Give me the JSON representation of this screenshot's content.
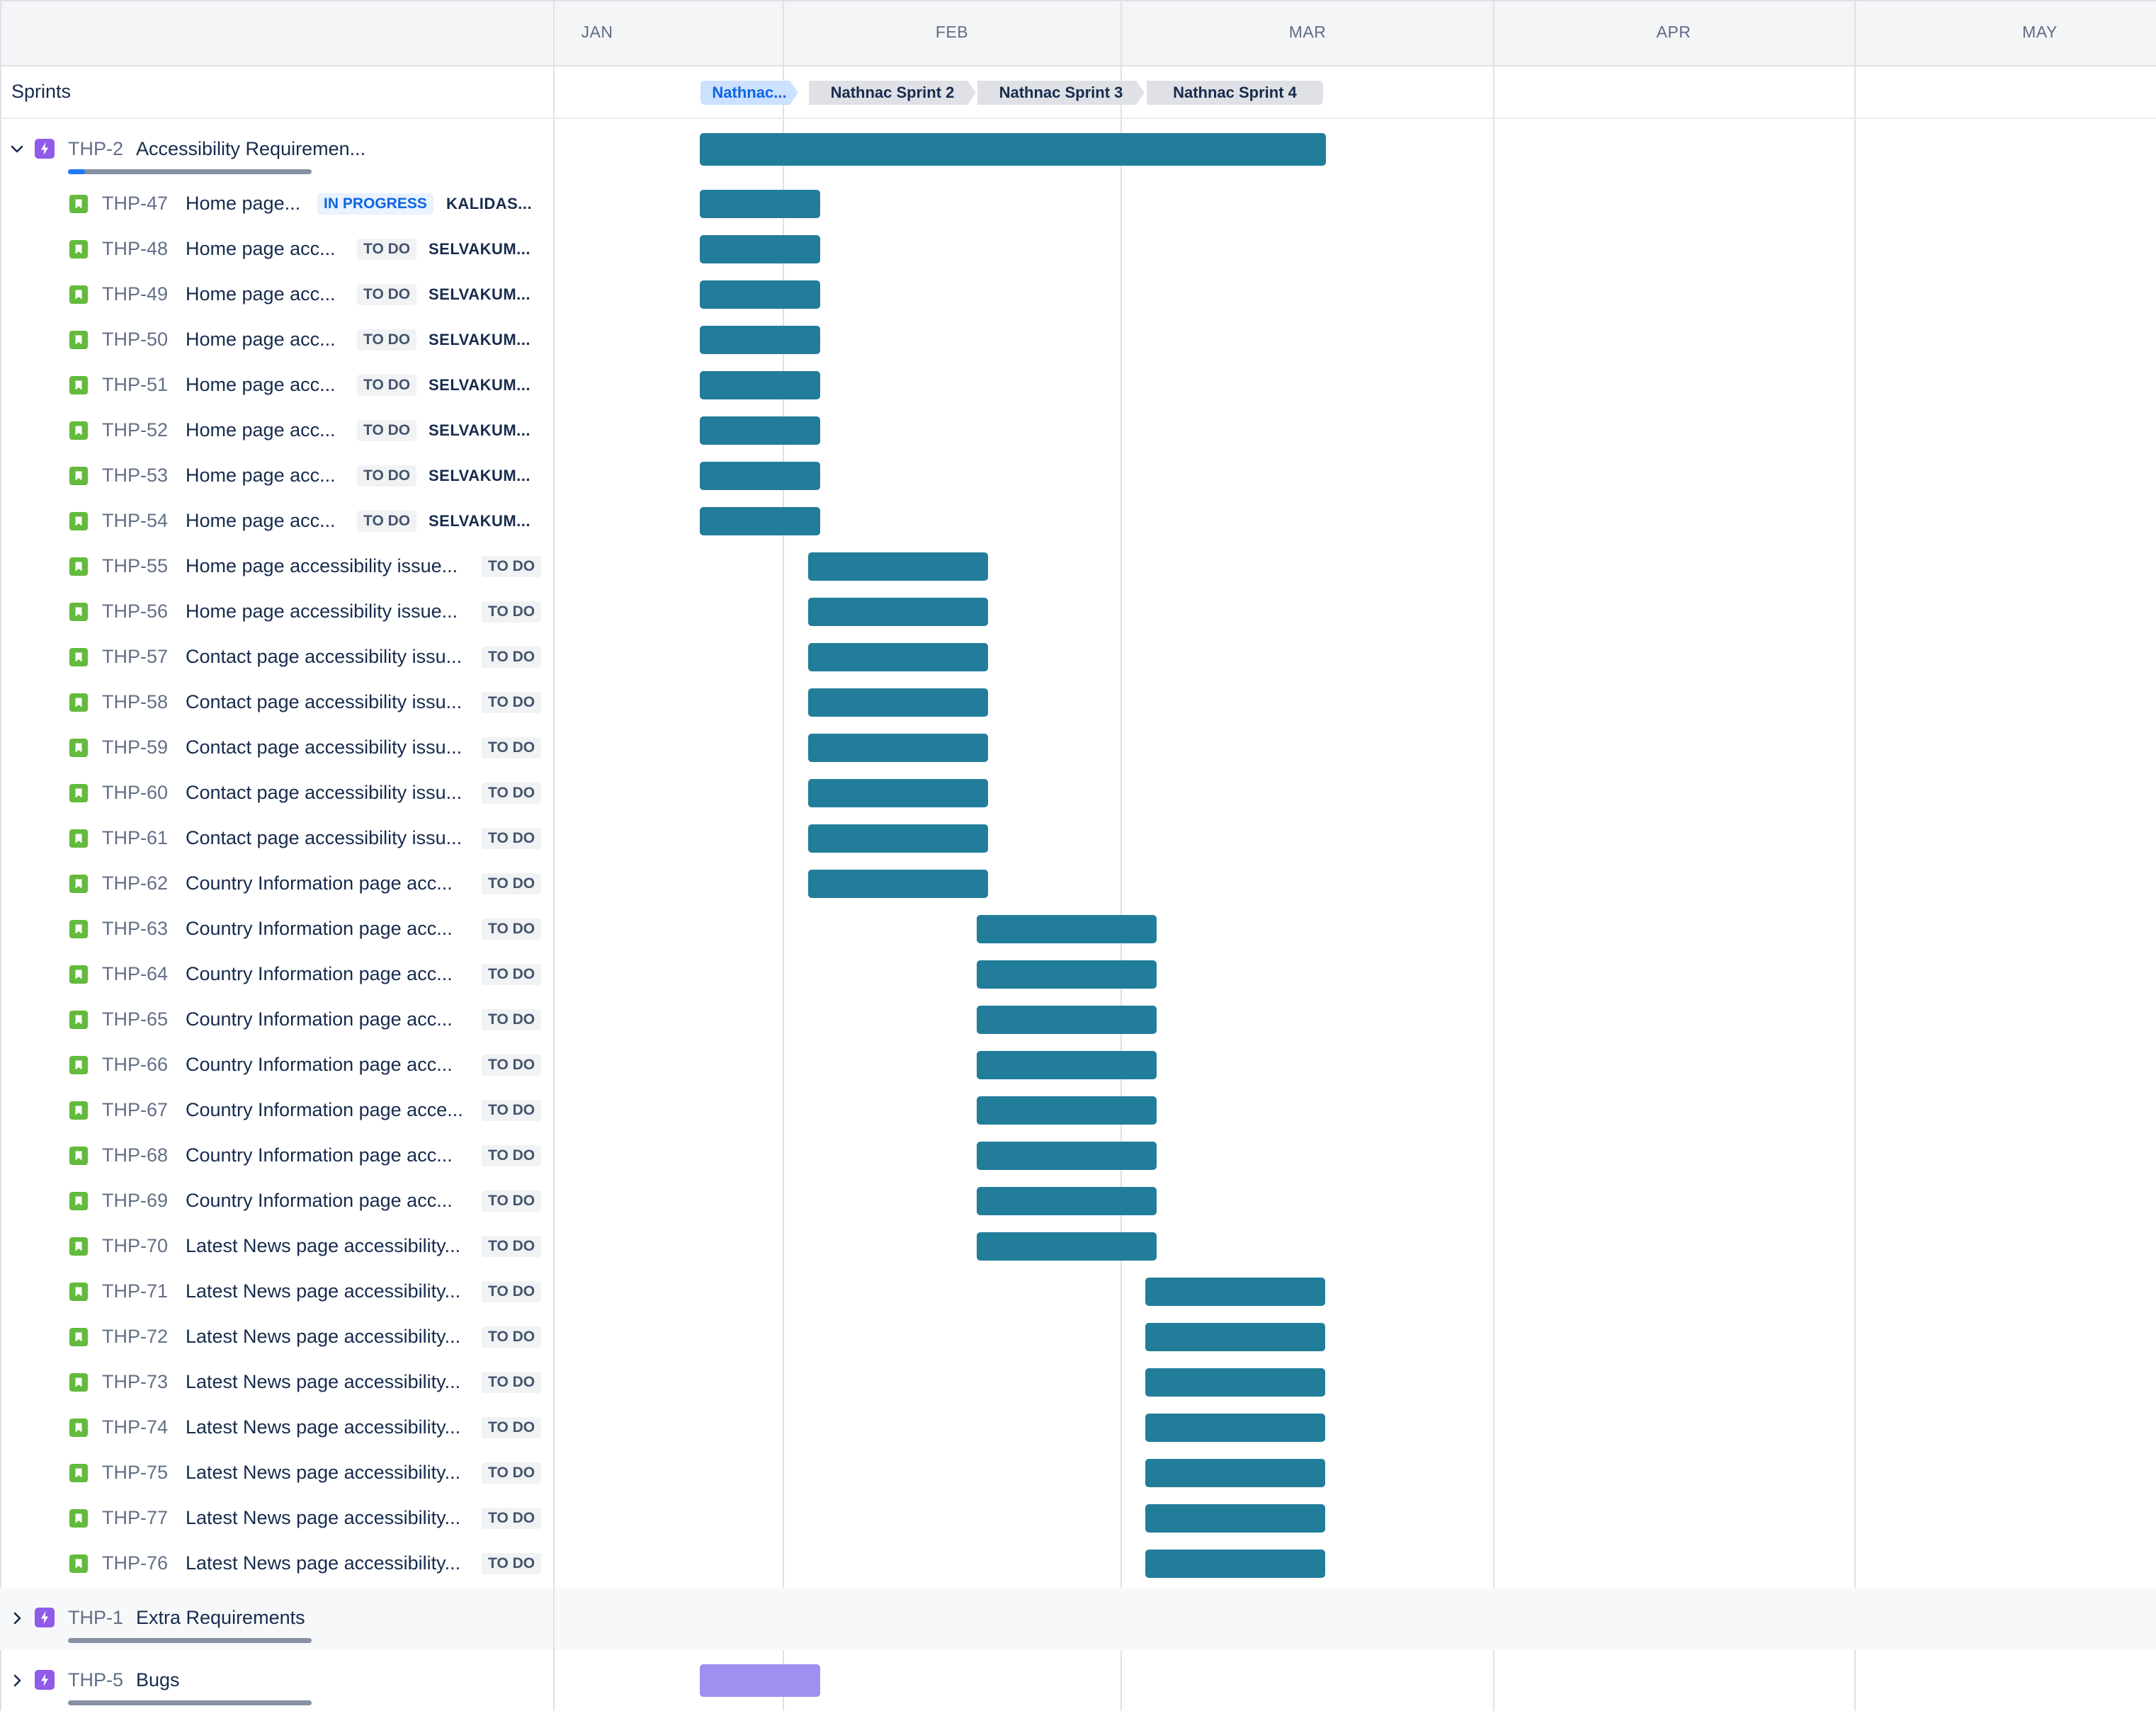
{
  "timeline": {
    "months": [
      "JAN",
      "FEB",
      "MAR",
      "APR",
      "MAY"
    ]
  },
  "sprints": {
    "label": "Sprints",
    "items": [
      {
        "label": "Nathnac..."
      },
      {
        "label": "Nathnac Sprint 2"
      },
      {
        "label": "Nathnac Sprint 3"
      },
      {
        "label": "Nathnac Sprint 4"
      }
    ]
  },
  "epics": [
    {
      "key": "THP-2",
      "summary": "Accessibility Requiremen...",
      "expanded": true,
      "progress_done": 0.07,
      "color": "#227d9b",
      "children": [
        {
          "key": "THP-47",
          "summary": "Home page...",
          "status": "IN PROGRESS",
          "assignee": "KALIDAS..."
        },
        {
          "key": "THP-48",
          "summary": "Home page acc...",
          "status": "TO DO",
          "assignee": "SELVAKUM..."
        },
        {
          "key": "THP-49",
          "summary": "Home page acc...",
          "status": "TO DO",
          "assignee": "SELVAKUM..."
        },
        {
          "key": "THP-50",
          "summary": "Home page acc...",
          "status": "TO DO",
          "assignee": "SELVAKUM..."
        },
        {
          "key": "THP-51",
          "summary": "Home page acc...",
          "status": "TO DO",
          "assignee": "SELVAKUM..."
        },
        {
          "key": "THP-52",
          "summary": "Home page acc...",
          "status": "TO DO",
          "assignee": "SELVAKUM..."
        },
        {
          "key": "THP-53",
          "summary": "Home page acc...",
          "status": "TO DO",
          "assignee": "SELVAKUM..."
        },
        {
          "key": "THP-54",
          "summary": "Home page acc...",
          "status": "TO DO",
          "assignee": "SELVAKUM..."
        },
        {
          "key": "THP-55",
          "summary": "Home page accessibility issue...",
          "status": "TO DO",
          "assignee": ""
        },
        {
          "key": "THP-56",
          "summary": "Home page accessibility issue...",
          "status": "TO DO",
          "assignee": ""
        },
        {
          "key": "THP-57",
          "summary": "Contact page accessibility issu...",
          "status": "TO DO",
          "assignee": ""
        },
        {
          "key": "THP-58",
          "summary": "Contact page accessibility issu...",
          "status": "TO DO",
          "assignee": ""
        },
        {
          "key": "THP-59",
          "summary": "Contact page accessibility issu...",
          "status": "TO DO",
          "assignee": ""
        },
        {
          "key": "THP-60",
          "summary": "Contact page accessibility issu...",
          "status": "TO DO",
          "assignee": ""
        },
        {
          "key": "THP-61",
          "summary": "Contact page accessibility issu...",
          "status": "TO DO",
          "assignee": ""
        },
        {
          "key": "THP-62",
          "summary": "Country Information page acc...",
          "status": "TO DO",
          "assignee": ""
        },
        {
          "key": "THP-63",
          "summary": "Country Information page acc...",
          "status": "TO DO",
          "assignee": ""
        },
        {
          "key": "THP-64",
          "summary": "Country Information page acc...",
          "status": "TO DO",
          "assignee": ""
        },
        {
          "key": "THP-65",
          "summary": "Country Information page acc...",
          "status": "TO DO",
          "assignee": ""
        },
        {
          "key": "THP-66",
          "summary": "Country Information page acc...",
          "status": "TO DO",
          "assignee": ""
        },
        {
          "key": "THP-67",
          "summary": "Country Information page acce...",
          "status": "TO DO",
          "assignee": ""
        },
        {
          "key": "THP-68",
          "summary": "Country Information page acc...",
          "status": "TO DO",
          "assignee": ""
        },
        {
          "key": "THP-69",
          "summary": "Country Information page acc...",
          "status": "TO DO",
          "assignee": ""
        },
        {
          "key": "THP-70",
          "summary": "Latest News page accessibility...",
          "status": "TO DO",
          "assignee": ""
        },
        {
          "key": "THP-71",
          "summary": "Latest News page accessibility...",
          "status": "TO DO",
          "assignee": ""
        },
        {
          "key": "THP-72",
          "summary": "Latest News page accessibility...",
          "status": "TO DO",
          "assignee": ""
        },
        {
          "key": "THP-73",
          "summary": "Latest News page accessibility...",
          "status": "TO DO",
          "assignee": ""
        },
        {
          "key": "THP-74",
          "summary": "Latest News page accessibility...",
          "status": "TO DO",
          "assignee": ""
        },
        {
          "key": "THP-75",
          "summary": "Latest News page accessibility...",
          "status": "TO DO",
          "assignee": ""
        },
        {
          "key": "THP-77",
          "summary": "Latest News page accessibility...",
          "status": "TO DO",
          "assignee": ""
        },
        {
          "key": "THP-76",
          "summary": "Latest News page accessibility...",
          "status": "TO DO",
          "assignee": ""
        }
      ]
    },
    {
      "key": "THP-1",
      "summary": "Extra Requirements",
      "expanded": false,
      "progress_done": 0,
      "color": "#227d9b"
    },
    {
      "key": "THP-5",
      "summary": "Bugs",
      "expanded": false,
      "progress_done": 0,
      "color": "#9f8fef"
    }
  ]
}
